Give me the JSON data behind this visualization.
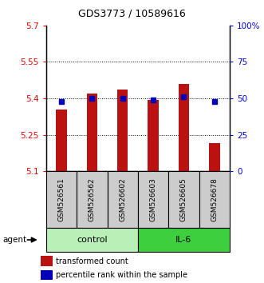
{
  "title": "GDS3773 / 10589616",
  "samples": [
    "GSM526561",
    "GSM526562",
    "GSM526602",
    "GSM526603",
    "GSM526605",
    "GSM526678"
  ],
  "bar_values": [
    5.355,
    5.42,
    5.435,
    5.395,
    5.46,
    5.215
  ],
  "bar_base": 5.1,
  "percentile_values": [
    48,
    50,
    50,
    49,
    51,
    48
  ],
  "group_configs": [
    {
      "label": "control",
      "indices": [
        0,
        1,
        2
      ],
      "color": "#b8f0b8"
    },
    {
      "label": "IL-6",
      "indices": [
        3,
        4,
        5
      ],
      "color": "#3ecf3e"
    }
  ],
  "ylim": [
    5.1,
    5.7
  ],
  "yticks": [
    5.1,
    5.25,
    5.4,
    5.55,
    5.7
  ],
  "ytick_labels": [
    "5.1",
    "5.25",
    "5.4",
    "5.55",
    "5.7"
  ],
  "y2ticks": [
    0,
    25,
    50,
    75,
    100
  ],
  "y2tick_labels": [
    "0",
    "25",
    "50",
    "75",
    "100%"
  ],
  "bar_color": "#bb1111",
  "dot_color": "#0000bb",
  "sample_box_color": "#cccccc",
  "group_label_fontsize": 8,
  "sample_fontsize": 6.5,
  "title_fontsize": 9,
  "legend_fontsize": 7,
  "agent_label": "agent",
  "legend_items": [
    "transformed count",
    "percentile rank within the sample"
  ]
}
